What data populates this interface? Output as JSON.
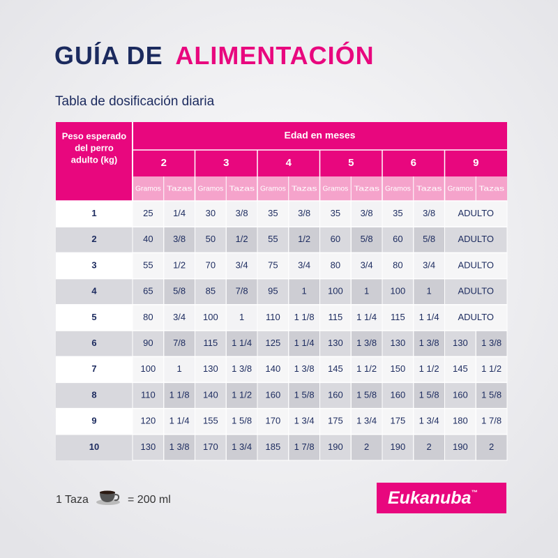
{
  "title": {
    "part1": "GUÍA DE",
    "part2": "ALIMENTACIÓN"
  },
  "subtitle": "Tabla de dosificación diaria",
  "table": {
    "corner_header": [
      "Peso esperado",
      "del perro",
      "adulto (kg)"
    ],
    "group_header": "Edad en meses",
    "ages": [
      2,
      3,
      4,
      5,
      6,
      9
    ],
    "sub_headers": [
      "Gramos",
      "Tazas"
    ],
    "rows": [
      {
        "weight": 1,
        "cells": [
          25,
          "1/4",
          30,
          "3/8",
          35,
          "3/8",
          35,
          "3/8",
          35,
          "3/8",
          "ADULTO"
        ]
      },
      {
        "weight": 2,
        "cells": [
          40,
          "3/8",
          50,
          "1/2",
          55,
          "1/2",
          60,
          "5/8",
          60,
          "5/8",
          "ADULTO"
        ]
      },
      {
        "weight": 3,
        "cells": [
          55,
          "1/2",
          70,
          "3/4",
          75,
          "3/4",
          80,
          "3/4",
          80,
          "3/4",
          "ADULTO"
        ]
      },
      {
        "weight": 4,
        "cells": [
          65,
          "5/8",
          85,
          "7/8",
          95,
          "1",
          100,
          "1",
          100,
          "1",
          "ADULTO"
        ]
      },
      {
        "weight": 5,
        "cells": [
          80,
          "3/4",
          100,
          "1",
          110,
          "1 1/8",
          115,
          "1 1/4",
          115,
          "1 1/4",
          "ADULTO"
        ]
      },
      {
        "weight": 6,
        "cells": [
          90,
          "7/8",
          115,
          "1 1/4",
          125,
          "1 1/4",
          130,
          "1 3/8",
          130,
          "1 3/8",
          130,
          "1 3/8"
        ]
      },
      {
        "weight": 7,
        "cells": [
          100,
          "1",
          130,
          "1 3/8",
          140,
          "1 3/8",
          145,
          "1 1/2",
          150,
          "1 1/2",
          145,
          "1 1/2"
        ]
      },
      {
        "weight": 8,
        "cells": [
          110,
          "1 1/8",
          140,
          "1 1/2",
          160,
          "1 5/8",
          160,
          "1 5/8",
          160,
          "1 5/8",
          160,
          "1 5/8"
        ]
      },
      {
        "weight": 9,
        "cells": [
          120,
          "1 1/4",
          155,
          "1 5/8",
          170,
          "1 3/4",
          175,
          "1 3/4",
          175,
          "1 3/4",
          180,
          "1 7/8"
        ]
      },
      {
        "weight": 10,
        "cells": [
          130,
          "1 3/8",
          170,
          "1 3/4",
          185,
          "1 7/8",
          190,
          "2",
          190,
          "2",
          190,
          "2"
        ]
      }
    ]
  },
  "footer": {
    "cup_label": "1 Taza",
    "equals": "= 200 ml",
    "brand": "Eukanuba",
    "trademark": "™"
  }
}
